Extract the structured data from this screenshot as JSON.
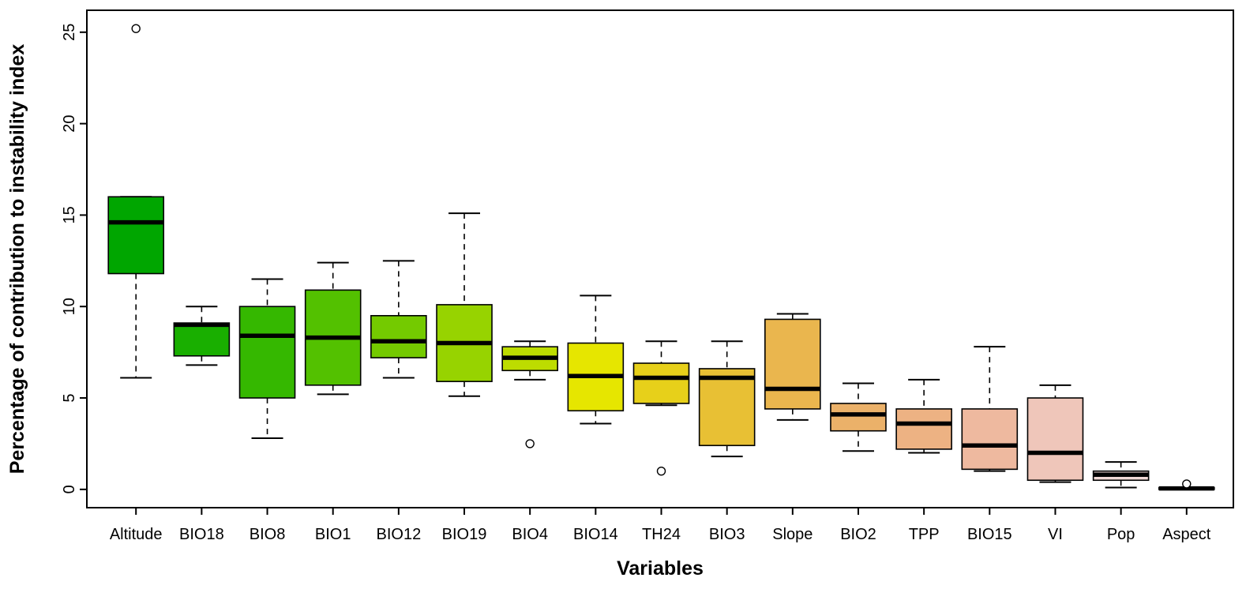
{
  "figure": {
    "background": "#FFFFFF",
    "border_color": "#000000"
  },
  "chart_data": {
    "type": "boxplot",
    "title": "",
    "xlabel": "Variables",
    "ylabel": "Percentage of contribution to instability index",
    "ylim": [
      -1,
      26.2
    ],
    "y_ticks": [
      0,
      5,
      10,
      15,
      20,
      25
    ],
    "grid": false,
    "legend": "none",
    "palette": "terrain-green-to-pink",
    "categories": [
      "Altitude",
      "BIO18",
      "BIO8",
      "BIO1",
      "BIO12",
      "BIO19",
      "BIO4",
      "BIO14",
      "TH24",
      "BIO3",
      "Slope",
      "BIO2",
      "TPP",
      "BIO15",
      "VI",
      "Pop",
      "Aspect"
    ],
    "series": [
      {
        "name": "Altitude",
        "whisker_low": 6.1,
        "q1": 11.8,
        "median": 14.6,
        "q3": 16.0,
        "whisker_high": 16.0,
        "outliers": [
          25.2
        ],
        "color": "#00A600"
      },
      {
        "name": "BIO18",
        "whisker_low": 6.8,
        "q1": 7.3,
        "median": 9.0,
        "q3": 9.1,
        "whisker_high": 10.0,
        "outliers": [],
        "color": "#19AF00"
      },
      {
        "name": "BIO8",
        "whisker_low": 2.8,
        "q1": 5.0,
        "median": 8.4,
        "q3": 10.0,
        "whisker_high": 11.5,
        "outliers": [],
        "color": "#35B800"
      },
      {
        "name": "BIO1",
        "whisker_low": 5.2,
        "q1": 5.7,
        "median": 8.3,
        "q3": 10.9,
        "whisker_high": 12.4,
        "outliers": [],
        "color": "#53C100"
      },
      {
        "name": "BIO12",
        "whisker_low": 6.1,
        "q1": 7.2,
        "median": 8.1,
        "q3": 9.5,
        "whisker_high": 12.5,
        "outliers": [],
        "color": "#74CA00"
      },
      {
        "name": "BIO19",
        "whisker_low": 5.1,
        "q1": 5.9,
        "median": 8.0,
        "q3": 10.1,
        "whisker_high": 15.1,
        "outliers": [],
        "color": "#97D300"
      },
      {
        "name": "BIO4",
        "whisker_low": 6.0,
        "q1": 6.5,
        "median": 7.2,
        "q3": 7.8,
        "whisker_high": 8.1,
        "outliers": [
          2.5
        ],
        "color": "#BDDC00"
      },
      {
        "name": "BIO14",
        "whisker_low": 3.6,
        "q1": 4.3,
        "median": 6.2,
        "q3": 8.0,
        "whisker_high": 10.6,
        "outliers": [],
        "color": "#E6E600"
      },
      {
        "name": "TH24",
        "whisker_low": 4.6,
        "q1": 4.7,
        "median": 6.1,
        "q3": 6.9,
        "whisker_high": 8.1,
        "outliers": [
          1.0
        ],
        "color": "#E7D01A"
      },
      {
        "name": "BIO3",
        "whisker_low": 1.8,
        "q1": 2.4,
        "median": 6.1,
        "q3": 6.6,
        "whisker_high": 8.1,
        "outliers": [],
        "color": "#E8C034"
      },
      {
        "name": "Slope",
        "whisker_low": 3.8,
        "q1": 4.4,
        "median": 5.5,
        "q3": 9.3,
        "whisker_high": 9.6,
        "outliers": [],
        "color": "#EAB64E"
      },
      {
        "name": "BIO2",
        "whisker_low": 2.1,
        "q1": 3.2,
        "median": 4.1,
        "q3": 4.7,
        "whisker_high": 5.8,
        "outliers": [],
        "color": "#EBB169"
      },
      {
        "name": "TPP",
        "whisker_low": 2.0,
        "q1": 2.2,
        "median": 3.6,
        "q3": 4.4,
        "whisker_high": 6.0,
        "outliers": [],
        "color": "#EDB283"
      },
      {
        "name": "BIO15",
        "whisker_low": 1.0,
        "q1": 1.1,
        "median": 2.4,
        "q3": 4.4,
        "whisker_high": 7.8,
        "outliers": [],
        "color": "#EEB99F"
      },
      {
        "name": "VI",
        "whisker_low": 0.4,
        "q1": 0.5,
        "median": 2.0,
        "q3": 5.0,
        "whisker_high": 5.7,
        "outliers": [],
        "color": "#EFC6BA"
      },
      {
        "name": "Pop",
        "whisker_low": 0.1,
        "q1": 0.5,
        "median": 0.8,
        "q3": 1.0,
        "whisker_high": 1.5,
        "outliers": [],
        "color": "#F1D9D6"
      },
      {
        "name": "Aspect",
        "whisker_low": 0.0,
        "q1": 0.0,
        "median": 0.05,
        "q3": 0.1,
        "whisker_high": 0.1,
        "outliers": [
          0.3
        ],
        "color": "#F2F2F2"
      }
    ]
  }
}
